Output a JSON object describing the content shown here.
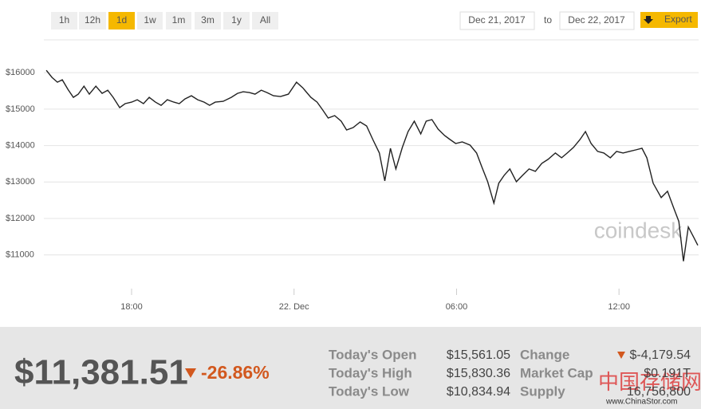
{
  "ranges": [
    "1h",
    "12h",
    "1d",
    "1w",
    "1m",
    "3m",
    "1y",
    "All"
  ],
  "active_range": "1d",
  "date_from": "Dec 21, 2017",
  "date_to_label": "to",
  "date_to": "Dec 22, 2017",
  "export": "Export",
  "watermark": "coindesk",
  "chart_data": {
    "type": "line",
    "color": "#222222",
    "xlim": [
      14.76,
      38.94
    ],
    "xticks": [
      {
        "value": 18,
        "label": "18:00"
      },
      {
        "value": 24,
        "label": "22. Dec"
      },
      {
        "value": 30,
        "label": "06:00"
      },
      {
        "value": 36,
        "label": "12:00"
      }
    ],
    "ylim": [
      9900,
      16900
    ],
    "yticks": [
      {
        "value": 11000,
        "label": "$11000"
      },
      {
        "value": 12000,
        "label": "$12000"
      },
      {
        "value": 13000,
        "label": "$13000"
      },
      {
        "value": 14000,
        "label": "$14000"
      },
      {
        "value": 15000,
        "label": "$15000"
      },
      {
        "value": 16000,
        "label": "$16000"
      }
    ],
    "grid": true,
    "x": [
      14.85,
      15.06,
      15.26,
      15.44,
      15.65,
      15.85,
      16.03,
      16.24,
      16.44,
      16.68,
      16.91,
      17.12,
      17.32,
      17.56,
      17.76,
      18,
      18.21,
      18.44,
      18.65,
      18.88,
      19.09,
      19.32,
      19.56,
      19.76,
      19.97,
      20.21,
      20.44,
      20.68,
      20.88,
      21.09,
      21.38,
      21.68,
      21.91,
      22.12,
      22.35,
      22.56,
      22.79,
      23,
      23.24,
      23.5,
      23.79,
      24.09,
      24.32,
      24.62,
      24.85,
      25.06,
      25.26,
      25.5,
      25.74,
      25.94,
      26.18,
      26.44,
      26.68,
      26.91,
      27.15,
      27.35,
      27.56,
      27.76,
      28,
      28.21,
      28.44,
      28.68,
      28.88,
      29.09,
      29.32,
      29.56,
      29.76,
      29.97,
      30.21,
      30.5,
      30.74,
      30.94,
      31.15,
      31.38,
      31.56,
      31.76,
      31.97,
      32.21,
      32.44,
      32.68,
      32.91,
      33.15,
      33.38,
      33.65,
      33.88,
      34.09,
      34.32,
      34.56,
      34.76,
      34.97,
      35.21,
      35.44,
      35.68,
      35.91,
      36.15,
      36.38,
      36.62,
      36.85,
      37.03,
      37.26,
      37.56,
      37.79,
      38.03,
      38.21,
      38.38,
      38.56,
      38.76,
      38.91
    ],
    "values": [
      16065,
      15869,
      15738,
      15804,
      15542,
      15323,
      15411,
      15629,
      15411,
      15629,
      15432,
      15520,
      15323,
      15040,
      15149,
      15192,
      15258,
      15149,
      15323,
      15192,
      15105,
      15258,
      15192,
      15149,
      15280,
      15367,
      15258,
      15192,
      15105,
      15192,
      15214,
      15323,
      15432,
      15476,
      15454,
      15411,
      15520,
      15454,
      15367,
      15345,
      15411,
      15738,
      15585,
      15323,
      15192,
      14974,
      14756,
      14821,
      14668,
      14428,
      14494,
      14647,
      14537,
      14166,
      13795,
      13031,
      13926,
      13359,
      13948,
      14385,
      14668,
      14319,
      14668,
      14712,
      14450,
      14275,
      14166,
      14057,
      14101,
      14013,
      13795,
      13402,
      13009,
      12420,
      12966,
      13184,
      13359,
      13009,
      13184,
      13359,
      13293,
      13511,
      13620,
      13795,
      13664,
      13795,
      13948,
      14166,
      14385,
      14057,
      13839,
      13795,
      13664,
      13839,
      13795,
      13839,
      13882,
      13926,
      13664,
      12966,
      12573,
      12747,
      12267,
      11918,
      10826,
      11765,
      11481,
      11263
    ]
  },
  "price": "$11,381.51",
  "change_pct": "-26.86%",
  "stats": [
    {
      "label": "Today's Open",
      "value": "$15,561.05"
    },
    {
      "label": "Today's High",
      "value": "$15,830.36"
    },
    {
      "label": "Today's Low",
      "value": "$10,834.94"
    },
    {
      "label": "Change",
      "value": "$-4,179.54"
    },
    {
      "label": "Market Cap",
      "value": "$0.191T"
    },
    {
      "label": "Supply",
      "value": "16,756,800"
    }
  ],
  "site_watermark": "中国存储网",
  "site_url": "www.ChinaStor.com"
}
